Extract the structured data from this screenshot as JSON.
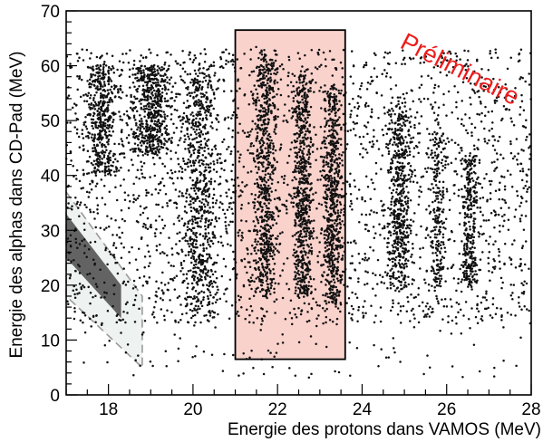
{
  "chart_data": {
    "type": "scatter",
    "title": "",
    "xlabel": "Energie des protons dans VAMOS (MeV)",
    "ylabel": "Energie des alphas dans CD-Pad (MeV)",
    "xlim": [
      17,
      28
    ],
    "ylim": [
      0,
      70
    ],
    "x_ticks": [
      "18",
      "20",
      "22",
      "24",
      "26",
      "28"
    ],
    "y_ticks": [
      "0",
      "10",
      "20",
      "30",
      "40",
      "50",
      "60",
      "70"
    ],
    "grid": false,
    "legend": "none",
    "annotation": "Préliminaire",
    "point_color": "#111111",
    "highlight_box": {
      "x": [
        21.0,
        23.6
      ],
      "y": [
        6.5,
        66.5
      ],
      "fill": "#f9d2cc",
      "edge": "#000000"
    },
    "excluded_region": {
      "outer": [
        [
          17,
          37
        ],
        [
          18.8,
          18
        ],
        [
          18.8,
          5
        ],
        [
          17,
          18
        ]
      ],
      "inner": [
        [
          17,
          33
        ],
        [
          18.3,
          20
        ],
        [
          18.3,
          14
        ],
        [
          17,
          25
        ]
      ],
      "outer_fill": "#eef2f1",
      "inner_fill": "#4a4a4a"
    },
    "point_clusters": [
      {
        "name": "diffuse-background",
        "x": [
          17.0,
          28.0
        ],
        "y": [
          13,
          63
        ],
        "n": 2500
      },
      {
        "name": "left-upper-blob",
        "x": [
          17.2,
          18.5
        ],
        "y": [
          40,
          60
        ],
        "n": 420
      },
      {
        "name": "mid-upper-blob",
        "x": [
          18.2,
          19.8
        ],
        "y": [
          44,
          60
        ],
        "n": 540
      },
      {
        "name": "band-20",
        "x": [
          19.4,
          20.9
        ],
        "y": [
          15,
          60
        ],
        "n": 650
      },
      {
        "name": "box-band-21.6",
        "x": [
          21.2,
          22.2
        ],
        "y": [
          18,
          62
        ],
        "n": 650
      },
      {
        "name": "box-band-22.6",
        "x": [
          22.2,
          23.0
        ],
        "y": [
          18,
          58
        ],
        "n": 600
      },
      {
        "name": "box-band-23.3",
        "x": [
          22.9,
          23.7
        ],
        "y": [
          17,
          56
        ],
        "n": 600
      },
      {
        "name": "band-24.9",
        "x": [
          24.4,
          25.4
        ],
        "y": [
          20,
          52
        ],
        "n": 520
      },
      {
        "name": "band-25.8",
        "x": [
          25.5,
          26.1
        ],
        "y": [
          20,
          48
        ],
        "n": 200
      },
      {
        "name": "band-26.5",
        "x": [
          26.2,
          26.9
        ],
        "y": [
          20,
          44
        ],
        "n": 280
      },
      {
        "name": "sparse-low",
        "x": [
          17.2,
          27.8
        ],
        "y": [
          3,
          18
        ],
        "n": 130
      }
    ]
  }
}
